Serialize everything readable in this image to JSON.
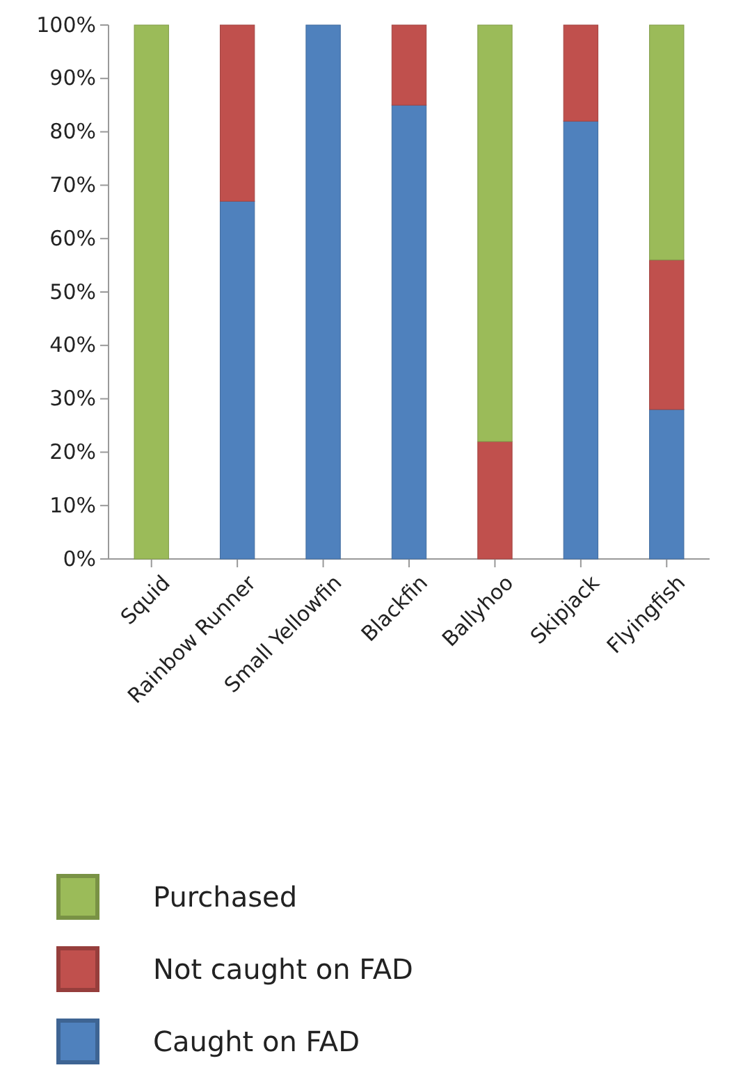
{
  "chart_data": {
    "type": "bar",
    "stacked": true,
    "categories": [
      "Squid",
      "Rainbow Runner",
      "Small Yellowfin",
      "Blackfin",
      "Ballyhoo",
      "Skipjack",
      "Flyingfish"
    ],
    "series": [
      {
        "name": "Caught on FAD",
        "color": "#4f81bd",
        "values": [
          0,
          67,
          100,
          85,
          0,
          82,
          28
        ]
      },
      {
        "name": "Not caught on FAD",
        "color": "#c0504d",
        "values": [
          0,
          33,
          0,
          15,
          22,
          18,
          28
        ]
      },
      {
        "name": "Purchased",
        "color": "#9bbb59",
        "values": [
          100,
          0,
          0,
          0,
          78,
          0,
          44
        ]
      }
    ],
    "ylim": [
      0,
      100
    ],
    "yticks": [
      {
        "value": 0,
        "label": "0%"
      },
      {
        "value": 10,
        "label": "10%"
      },
      {
        "value": 20,
        "label": "20%"
      },
      {
        "value": 30,
        "label": "30%"
      },
      {
        "value": 40,
        "label": "40%"
      },
      {
        "value": 50,
        "label": "50%"
      },
      {
        "value": 60,
        "label": "60%"
      },
      {
        "value": 70,
        "label": "70%"
      },
      {
        "value": 80,
        "label": "80%"
      },
      {
        "value": 90,
        "label": "90%"
      },
      {
        "value": 100,
        "label": "100%"
      }
    ],
    "grid": false,
    "legend": "bottom"
  }
}
